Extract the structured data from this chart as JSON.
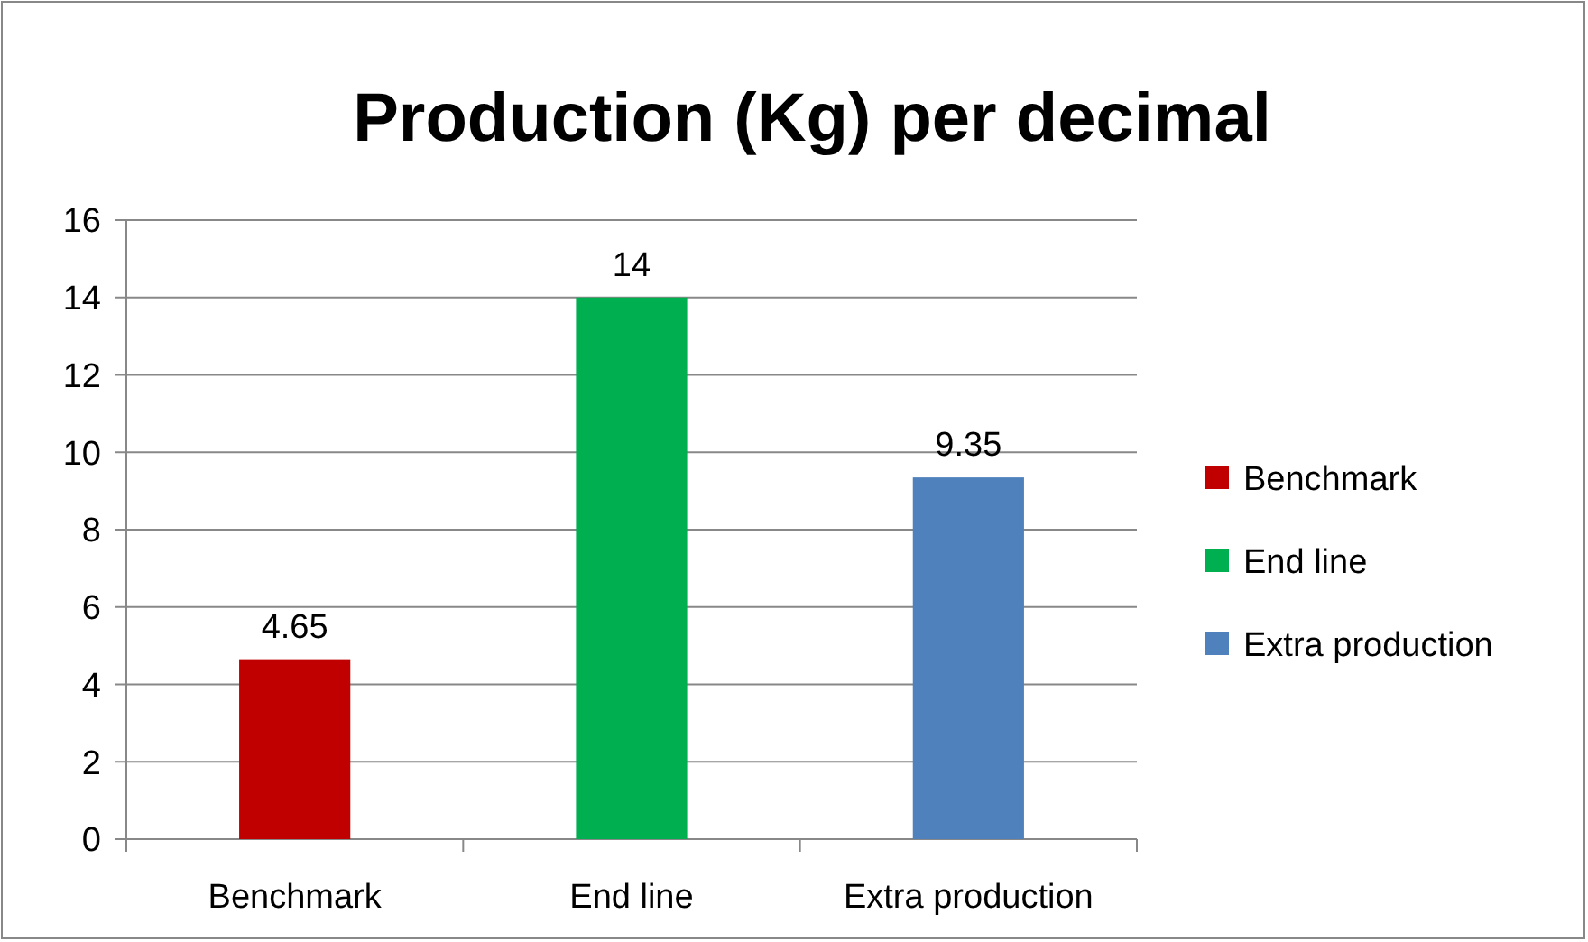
{
  "chart_data": {
    "type": "bar",
    "title": "Production (Kg) per decimal",
    "categories": [
      "Benchmark",
      "End line",
      "Extra production"
    ],
    "series": [
      {
        "name": "Benchmark",
        "color": "#c00000",
        "values": [
          4.65,
          null,
          null
        ]
      },
      {
        "name": "End line",
        "color": "#00b050",
        "values": [
          null,
          14,
          null
        ]
      },
      {
        "name": "Extra production",
        "color": "#4f81bd",
        "values": [
          null,
          null,
          9.35
        ]
      }
    ],
    "ylim": [
      0,
      16
    ],
    "yticks": [
      0,
      2,
      4,
      6,
      8,
      10,
      12,
      14,
      16
    ],
    "grid": "y",
    "legend": "right",
    "data_labels": true
  }
}
